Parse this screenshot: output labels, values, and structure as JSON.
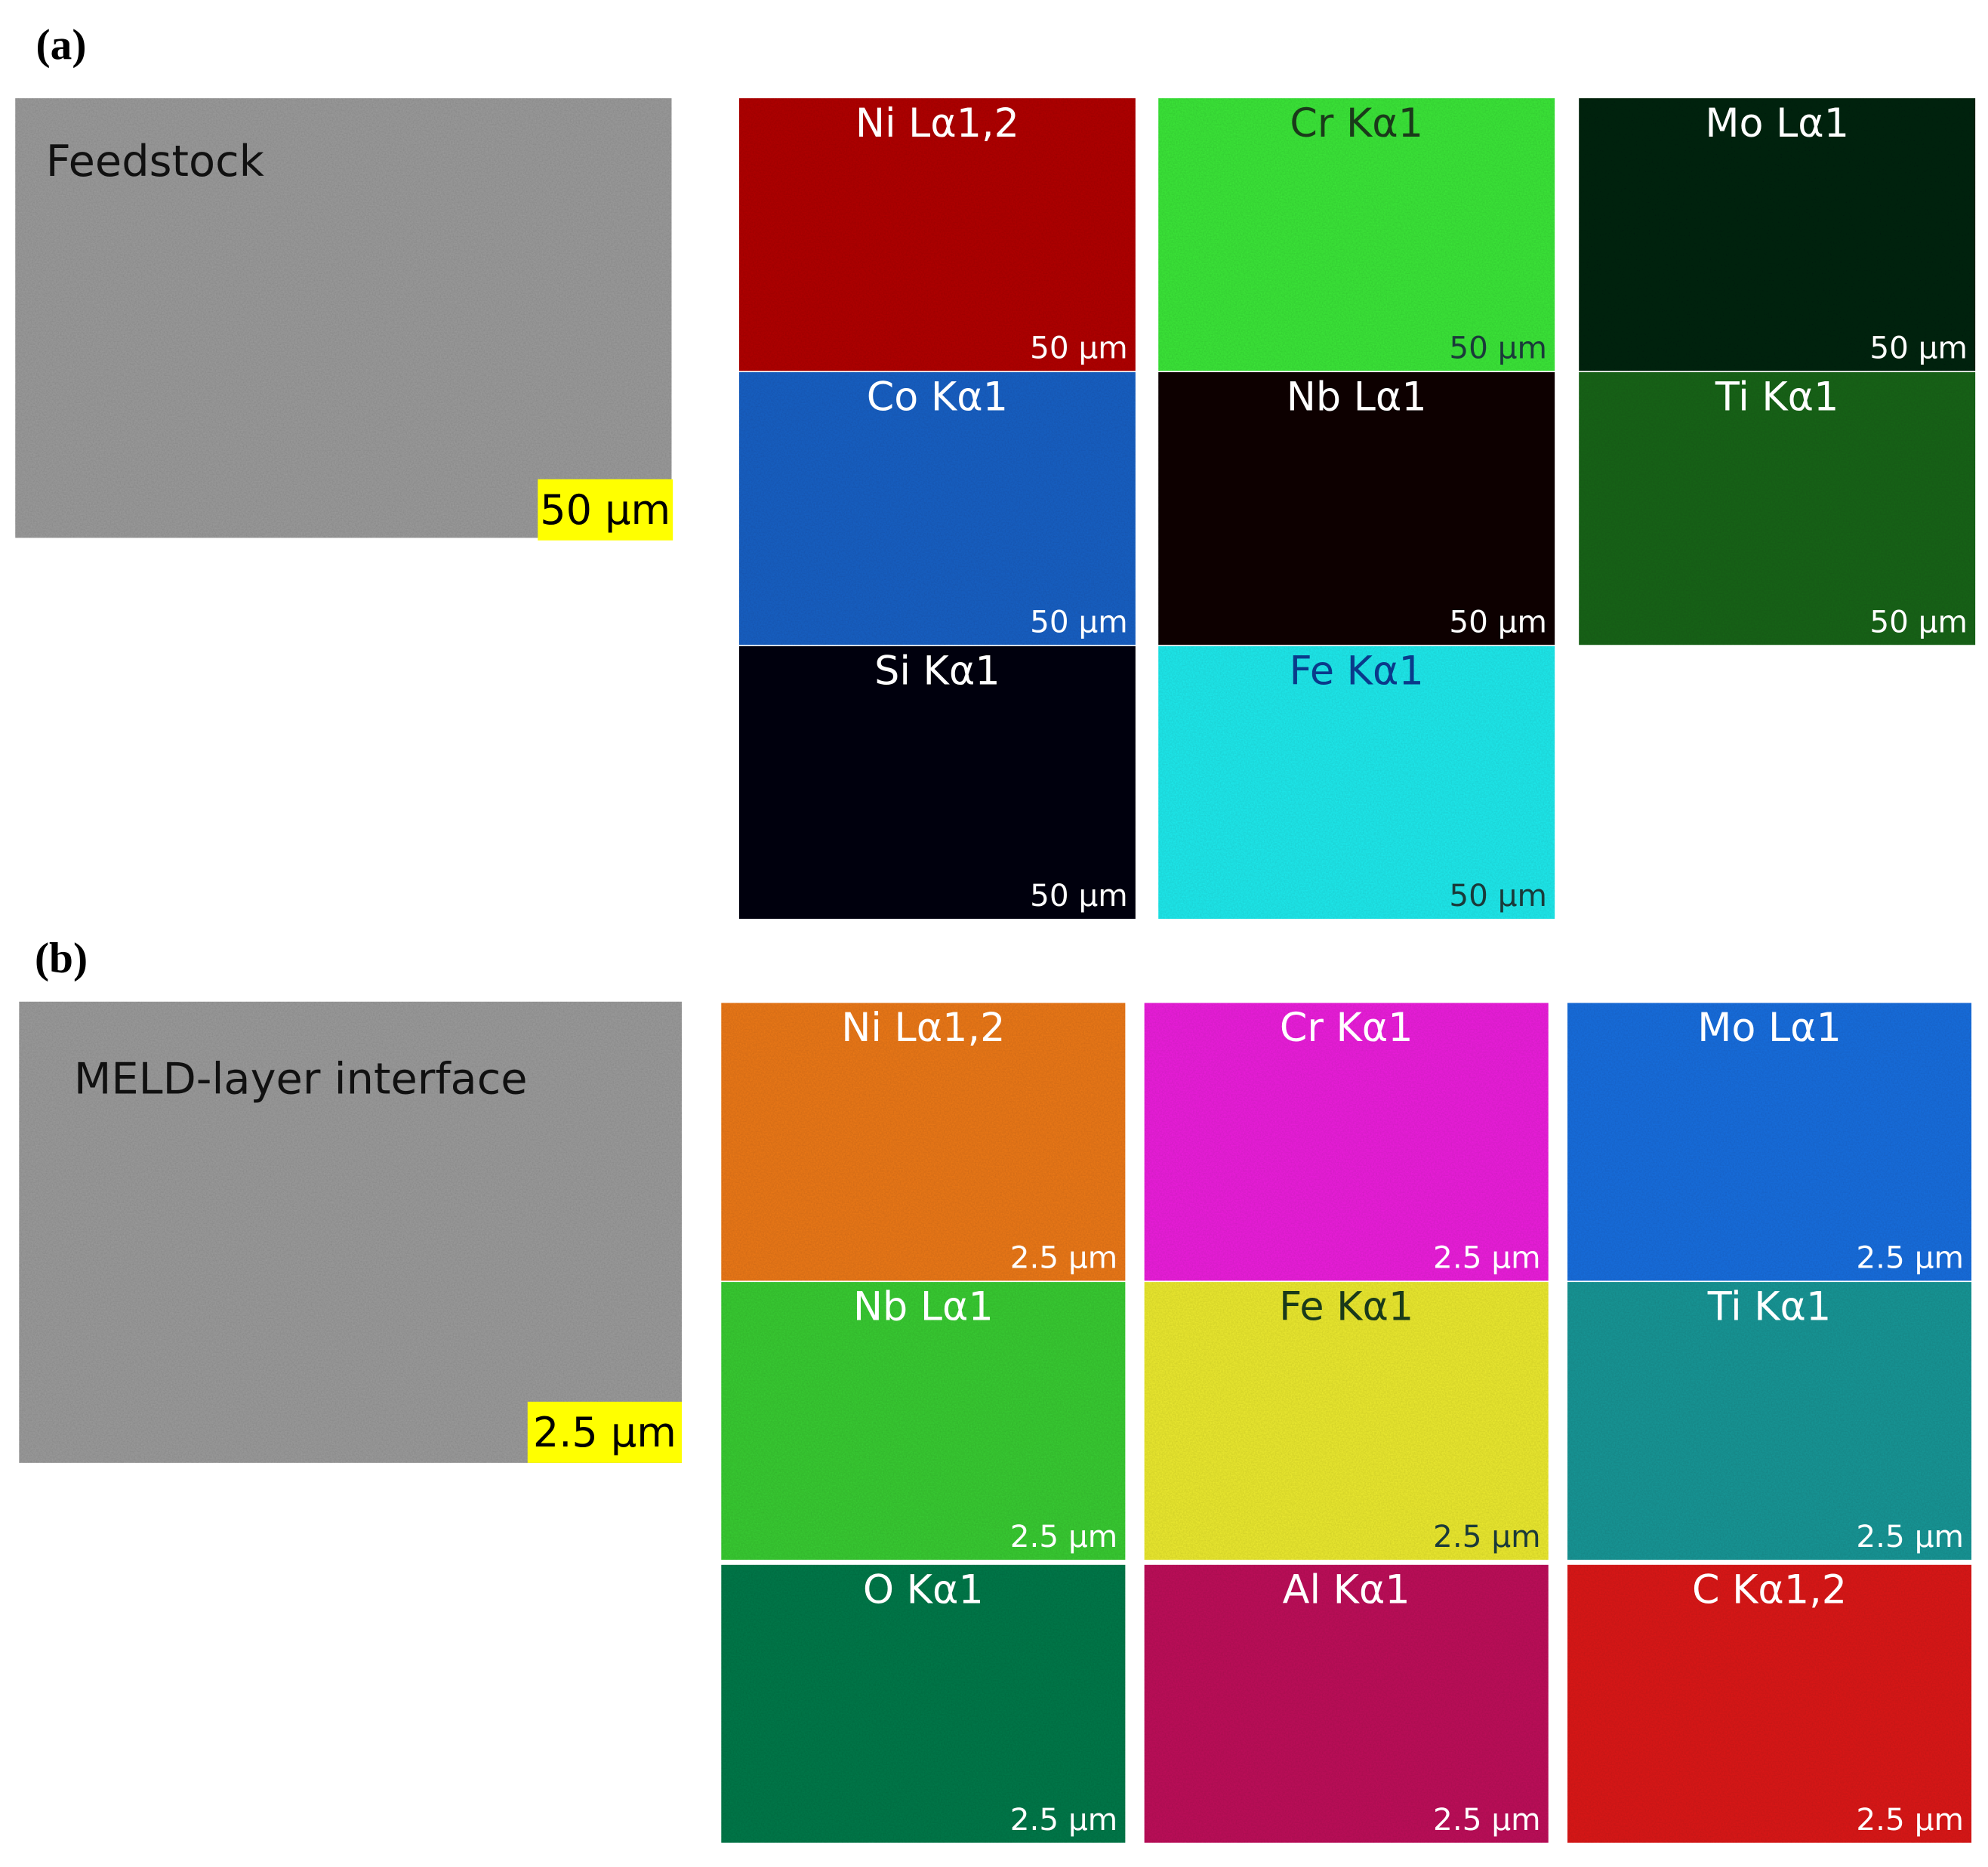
{
  "panels": [
    {
      "label": "(a)",
      "image_label": "Feedstock",
      "scale_bar": "50 µm",
      "maps": [
        {
          "element": "Ni Lα1,2",
          "scale_bar": "50 µm",
          "color": "#b30202"
        },
        {
          "element": "Cr Kα1",
          "scale_bar": "50 µm",
          "color": "#3ee83a"
        },
        {
          "element": "Mo Lα1",
          "scale_bar": "50 µm",
          "color": "#0b2814"
        },
        {
          "element": "Co Kα1",
          "scale_bar": "50 µm",
          "color": "#1c62c6"
        },
        {
          "element": "Nb Lα1",
          "scale_bar": "50 µm",
          "color": "#140505"
        },
        {
          "element": "Ti Kα1",
          "scale_bar": "50 µm",
          "color": "#1b661c"
        },
        {
          "element": "Si Kα1",
          "scale_bar": "50 µm",
          "color": "#0e0112"
        },
        {
          "element": "Fe Kα1",
          "scale_bar": "50 µm",
          "color": "#24ecef"
        }
      ]
    },
    {
      "label": "(b)",
      "image_label": "MELD-layer interface",
      "scale_bar": "2.5 µm",
      "maps": [
        {
          "element": "Ni Lα1,2",
          "scale_bar": "2.5 µm",
          "color": "#ee7a1c"
        },
        {
          "element": "Cr Kα1",
          "scale_bar": "2.5 µm",
          "color": "#ee22de"
        },
        {
          "element": "Mo Lα1",
          "scale_bar": "2.5 µm",
          "color": "#1b70e0"
        },
        {
          "element": "Nb Lα1",
          "scale_bar": "2.5 µm",
          "color": "#3bcd36"
        },
        {
          "element": "Fe Kα1",
          "scale_bar": "2.5 µm",
          "color": "#eeec32"
        },
        {
          "element": "Ti Kα1",
          "scale_bar": "2.5 µm",
          "color": "#1b9898"
        },
        {
          "element": "O Kα1",
          "scale_bar": "2.5 µm",
          "color": "#0b7a4c"
        },
        {
          "element": "Al Kα1",
          "scale_bar": "2.5 µm",
          "color": "#c0125c"
        },
        {
          "element": "C Kα1,2",
          "scale_bar": "2.5 µm",
          "color": "#de1a1a"
        }
      ]
    }
  ]
}
